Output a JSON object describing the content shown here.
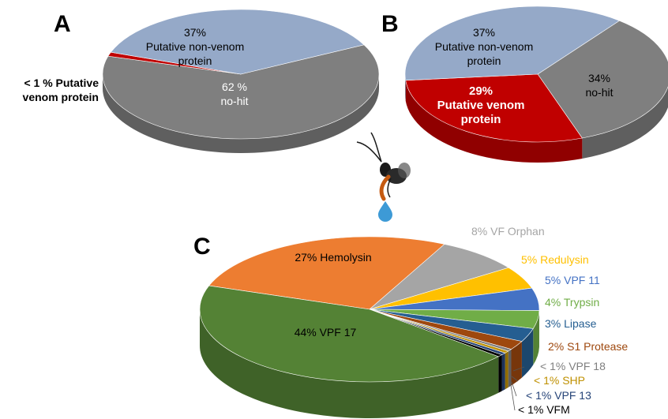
{
  "chart_data": [
    {
      "panel": "A",
      "type": "pie",
      "categories": [
        "Putative non-venom protein",
        "no-hit",
        "Putative venom protein"
      ],
      "values": [
        37,
        62,
        1
      ],
      "labels": [
        {
          "lines": [
            "37%",
            "Putative non-venom",
            "protein"
          ]
        },
        {
          "lines": [
            "62 %",
            "no-hit"
          ]
        },
        {
          "lines": [
            "< 1 % Putative",
            "venom protein"
          ]
        }
      ],
      "colors": [
        "#95a9c8",
        "#7f7f7f",
        "#c00000"
      ]
    },
    {
      "panel": "B",
      "type": "pie",
      "categories": [
        "Putative non-venom protein",
        "no-hit",
        "Putative venom protein"
      ],
      "values": [
        37,
        34,
        29
      ],
      "labels": [
        {
          "lines": [
            "37%",
            "Putative non-venom",
            "protein"
          ]
        },
        {
          "lines": [
            "34%",
            "no-hit"
          ]
        },
        {
          "lines": [
            "29%",
            "Putative venom",
            "protein"
          ]
        }
      ],
      "colors": [
        "#95a9c8",
        "#7f7f7f",
        "#c00000"
      ]
    },
    {
      "panel": "C",
      "type": "pie",
      "categories": [
        "VPF 17",
        "Hemolysin",
        "VF Orphan",
        "Redulysin",
        "VPF 11",
        "Trypsin",
        "Lipase",
        "S1 Protease",
        "VPF 18",
        "SHP",
        "VPF 13",
        "VFM"
      ],
      "values": [
        44,
        27,
        8,
        5,
        5,
        4,
        3,
        2,
        0.5,
        0.5,
        0.5,
        0.5
      ],
      "labels": [
        "44% VPF 17",
        "27% Hemolysin",
        "8%  VF Orphan",
        "5%  Redulysin",
        "5%  VPF 11",
        "4% Trypsin",
        "3% Lipase",
        "2% S1 Protease",
        "< 1% VPF 18",
        "< 1% SHP",
        "< 1% VPF 13",
        "< 1% VFM"
      ],
      "colors": [
        "#548235",
        "#ed7d31",
        "#a5a5a5",
        "#ffc000",
        "#4472c4",
        "#70ad47",
        "#255e91",
        "#9e480e",
        "#7f7f7f",
        "#bf9000",
        "#264478",
        "#000000"
      ],
      "label_colors": [
        "#000000",
        "#000000",
        "#a5a5a5",
        "#ffc000",
        "#4472c4",
        "#70ad47",
        "#255e91",
        "#9e480e",
        "#7f7f7f",
        "#bf9000",
        "#264478",
        "#000000"
      ]
    }
  ],
  "panels": {
    "a_letter": "A",
    "b_letter": "B",
    "c_letter": "C"
  },
  "illustration": {
    "name": "wasp-with-venom-drop"
  }
}
